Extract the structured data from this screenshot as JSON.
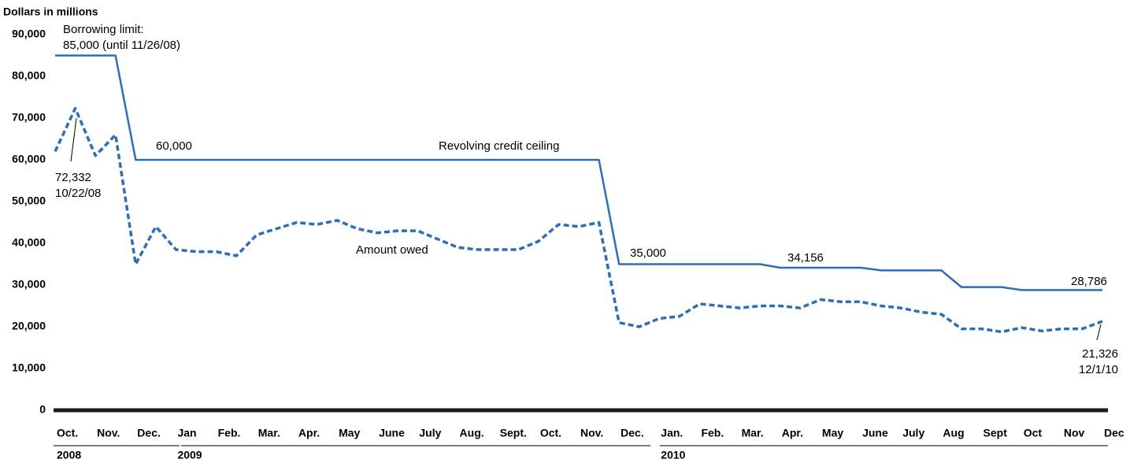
{
  "chart_data": {
    "type": "line",
    "title": "Dollars in millions",
    "categories": [
      "Oct.",
      null,
      "Nov.",
      null,
      "Dec.",
      null,
      "Jan",
      null,
      "Feb.",
      null,
      "Mar.",
      null,
      "Apr.",
      null,
      "May",
      null,
      "June",
      null,
      "July",
      null,
      "Aug.",
      null,
      "Sept.",
      null,
      "Oct.",
      null,
      "Nov.",
      null,
      "Dec.",
      null,
      "Jan.",
      null,
      "Feb.",
      null,
      "Mar.",
      null,
      "Apr.",
      null,
      "May",
      null,
      "June",
      null,
      "July",
      null,
      "Aug",
      null,
      "Sept",
      null,
      "Oct",
      null,
      "Nov",
      null,
      "Dec"
    ],
    "year_labels": [
      "2008",
      "2009",
      "2010"
    ],
    "series": [
      {
        "name": "Revolving credit ceiling",
        "color": "#2f6db5",
        "style": "solid",
        "values": [
          85000,
          85000,
          85000,
          85000,
          60000,
          60000,
          60000,
          60000,
          60000,
          60000,
          60000,
          60000,
          60000,
          60000,
          60000,
          60000,
          60000,
          60000,
          60000,
          60000,
          60000,
          60000,
          60000,
          60000,
          60000,
          60000,
          60000,
          60000,
          35000,
          35000,
          35000,
          35000,
          35000,
          35000,
          35000,
          35000,
          34156,
          34156,
          34156,
          34156,
          34156,
          33500,
          33500,
          33500,
          33500,
          29500,
          29500,
          29500,
          28786,
          28786,
          28786,
          28786,
          28786
        ]
      },
      {
        "name": "Amount owed",
        "color": "#2f6db5",
        "style": "dashed",
        "values": [
          62000,
          72332,
          61000,
          66000,
          35000,
          44000,
          38500,
          38000,
          38000,
          37000,
          42000,
          43500,
          45000,
          44500,
          45500,
          43500,
          42500,
          43000,
          43000,
          41000,
          39000,
          38500,
          38500,
          38500,
          40500,
          44500,
          44000,
          45000,
          21000,
          20000,
          22000,
          22500,
          25500,
          25000,
          24500,
          25000,
          25000,
          24500,
          26500,
          26000,
          26000,
          25000,
          24500,
          23500,
          23000,
          19500,
          19500,
          18800,
          19800,
          19000,
          19500,
          19500,
          21326
        ]
      }
    ],
    "annotations": [
      "Borrowing limit:",
      "85,000 (until 11/26/08)",
      "60,000",
      "72,332",
      "10/22/08",
      "35,000",
      "34,156",
      "28,786",
      "21,326",
      "12/1/10"
    ],
    "ylim": [
      0,
      90000
    ],
    "yticks": [
      0,
      {
        "value": 10000,
        "label": "10,000"
      },
      {
        "value": 20000,
        "label": "20,000"
      },
      {
        "value": 30000,
        "label": "30,000"
      },
      {
        "value": 40000,
        "label": "40,000"
      },
      {
        "value": 50000,
        "label": "50,000"
      },
      {
        "value": 60000,
        "label": "60,000"
      },
      {
        "value": 70000,
        "label": "70,000"
      },
      {
        "value": 80000,
        "label": "80,000"
      },
      {
        "value": 90000,
        "label": "90,000"
      }
    ],
    "grid": false
  }
}
